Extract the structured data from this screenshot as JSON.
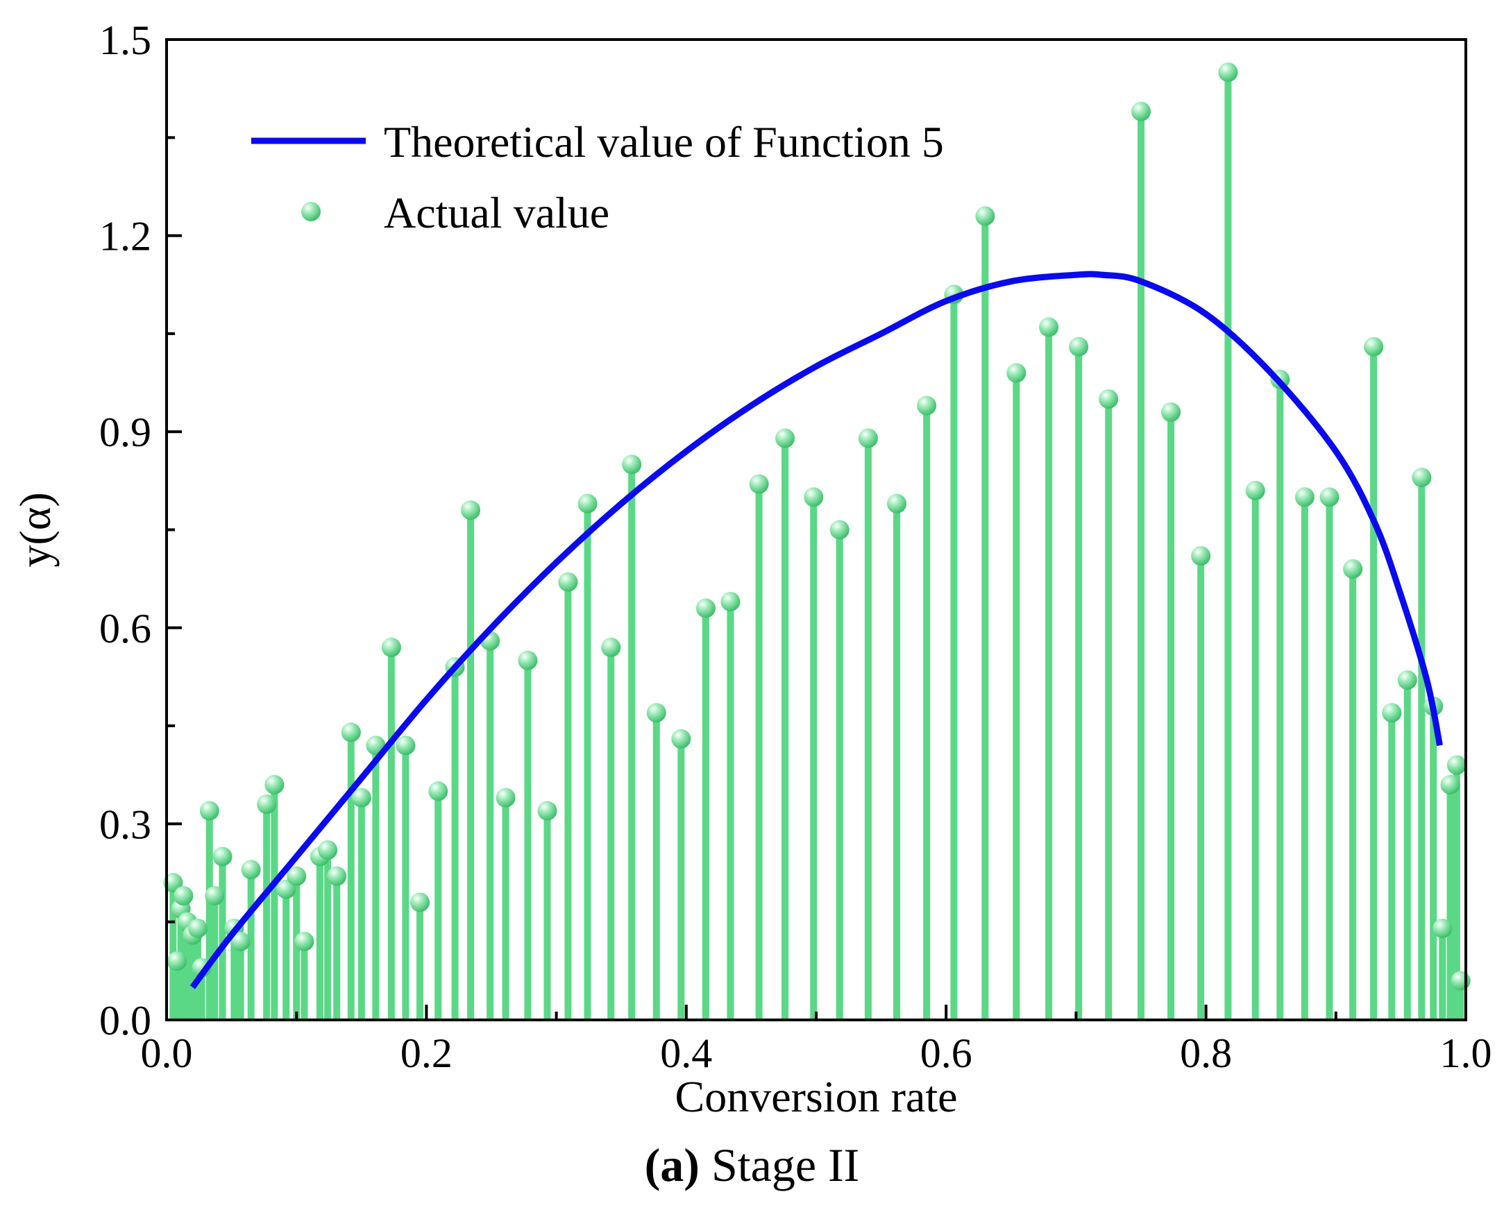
{
  "chart_data": {
    "type": "scatter",
    "title": "",
    "xlabel": "Conversion rate",
    "ylabel": "y(α)",
    "xlim": [
      0.0,
      1.0
    ],
    "ylim": [
      0.0,
      1.5
    ],
    "xticks": [
      "0.0",
      "0.2",
      "0.4",
      "0.6",
      "0.8",
      "1.0"
    ],
    "yticks": [
      "0.0",
      "0.3",
      "0.6",
      "0.9",
      "1.2",
      "1.5"
    ],
    "legend_position": "top-left",
    "series": [
      {
        "name": "Theoretical value of Function 5",
        "style": "line",
        "color": "#0a0aee",
        "x": [
          0.02,
          0.05,
          0.1,
          0.15,
          0.2,
          0.25,
          0.3,
          0.35,
          0.4,
          0.45,
          0.5,
          0.55,
          0.6,
          0.65,
          0.7,
          0.72,
          0.75,
          0.8,
          0.85,
          0.9,
          0.93,
          0.95,
          0.97,
          0.98
        ],
        "y": [
          0.05,
          0.13,
          0.25,
          0.37,
          0.49,
          0.6,
          0.7,
          0.79,
          0.87,
          0.94,
          1.0,
          1.05,
          1.1,
          1.13,
          1.14,
          1.14,
          1.13,
          1.08,
          0.99,
          0.87,
          0.76,
          0.65,
          0.52,
          0.42
        ]
      },
      {
        "name": "Actual value",
        "style": "stem",
        "color": "#5ad886",
        "x": [
          0.005,
          0.008,
          0.011,
          0.013,
          0.016,
          0.02,
          0.024,
          0.027,
          0.033,
          0.037,
          0.043,
          0.052,
          0.057,
          0.065,
          0.077,
          0.083,
          0.092,
          0.1,
          0.106,
          0.118,
          0.124,
          0.131,
          0.142,
          0.15,
          0.161,
          0.173,
          0.184,
          0.195,
          0.209,
          0.222,
          0.234,
          0.249,
          0.261,
          0.278,
          0.293,
          0.309,
          0.324,
          0.342,
          0.358,
          0.377,
          0.396,
          0.415,
          0.434,
          0.456,
          0.476,
          0.498,
          0.518,
          0.54,
          0.562,
          0.585,
          0.606,
          0.63,
          0.654,
          0.679,
          0.702,
          0.725,
          0.75,
          0.773,
          0.796,
          0.817,
          0.838,
          0.857,
          0.876,
          0.895,
          0.913,
          0.929,
          0.943,
          0.955,
          0.966,
          0.975,
          0.982,
          0.988,
          0.993,
          0.996
        ],
        "y": [
          0.21,
          0.09,
          0.17,
          0.19,
          0.15,
          0.13,
          0.14,
          0.08,
          0.32,
          0.19,
          0.25,
          0.14,
          0.12,
          0.23,
          0.33,
          0.36,
          0.2,
          0.22,
          0.12,
          0.25,
          0.26,
          0.22,
          0.44,
          0.34,
          0.42,
          0.57,
          0.42,
          0.18,
          0.35,
          0.54,
          0.78,
          0.58,
          0.34,
          0.55,
          0.32,
          0.67,
          0.79,
          0.57,
          0.85,
          0.47,
          0.43,
          0.63,
          0.64,
          0.82,
          0.89,
          0.8,
          0.75,
          0.89,
          0.79,
          0.94,
          1.11,
          1.23,
          0.99,
          1.06,
          1.03,
          0.95,
          1.39,
          0.93,
          0.71,
          1.45,
          0.81,
          0.98,
          0.8,
          0.8,
          0.69,
          1.03,
          0.47,
          0.52,
          0.83,
          0.48,
          0.14,
          0.36,
          0.39,
          0.06
        ]
      }
    ]
  },
  "caption": {
    "label": "(a)",
    "text": " Stage II"
  }
}
